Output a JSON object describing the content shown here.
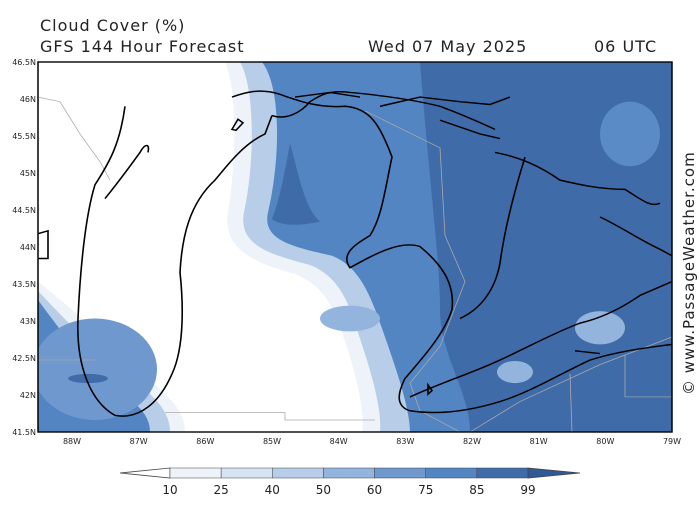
{
  "header": {
    "title": "Cloud Cover (%)",
    "subtitle": "GFS 144 Hour Forecast",
    "date": "Wed 07 May 2025",
    "time": "06 UTC"
  },
  "watermark": "© www.PassageWeather.com",
  "lat_labels": [
    "46.5N",
    "46N",
    "45.5N",
    "45N",
    "44.5N",
    "44N",
    "43.5N",
    "43N",
    "42.5N",
    "42N",
    "41.5N"
  ],
  "lon_labels": [
    "88W",
    "87W",
    "86W",
    "85W",
    "84W",
    "83W",
    "82W",
    "81W",
    "80W",
    "79W"
  ],
  "colorbar": {
    "levels": [
      10,
      25,
      40,
      50,
      60,
      75,
      85,
      99
    ]
  }
}
